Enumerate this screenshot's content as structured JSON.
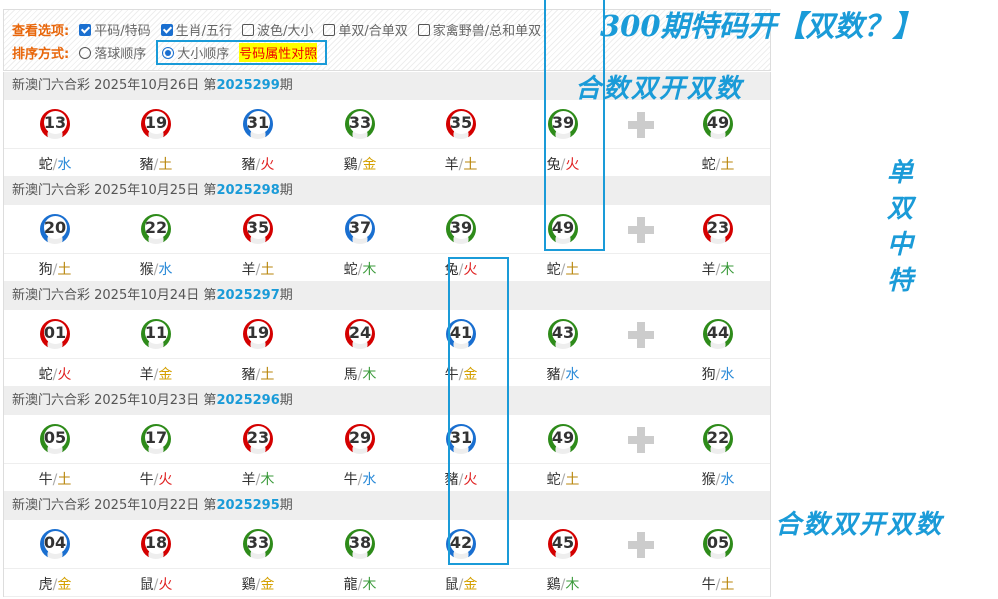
{
  "options": {
    "view_label": "查看选项:",
    "view_items": [
      {
        "label": "平码/特码",
        "checked": true
      },
      {
        "label": "生肖/五行",
        "checked": true
      },
      {
        "label": "波色/大小",
        "checked": false
      },
      {
        "label": "单双/合单双",
        "checked": false
      },
      {
        "label": "家禽野兽/总和单双",
        "checked": false
      }
    ],
    "sort_label": "排序方式:",
    "sort_items": [
      {
        "label": "落球顺序",
        "selected": false
      },
      {
        "label": "大小顺序",
        "selected": true
      }
    ],
    "attr_link": "号码属性对照"
  },
  "ball_colors": {
    "red": "#d40000",
    "blue": "#1a6fd0",
    "green": "#2e8b1a"
  },
  "element_colors": {
    "金": "#d4a000",
    "木": "#3a9a3a",
    "水": "#2a8ad8",
    "火": "#e02020",
    "土": "#b8860b"
  },
  "draws": [
    {
      "title": "新澳门六合彩 2025年10月26日 第",
      "issue": "2025299",
      "suffix": "期",
      "balls": [
        [
          "13",
          "red",
          "蛇",
          "水"
        ],
        [
          "19",
          "red",
          "豬",
          "土"
        ],
        [
          "31",
          "blue",
          "豬",
          "火"
        ],
        [
          "33",
          "green",
          "鷄",
          "金"
        ],
        [
          "35",
          "red",
          "羊",
          "土"
        ],
        [
          "39",
          "green",
          "兔",
          "火"
        ]
      ],
      "special": [
        "49",
        "green",
        "蛇",
        "土"
      ]
    },
    {
      "title": "新澳门六合彩 2025年10月25日 第",
      "issue": "2025298",
      "suffix": "期",
      "balls": [
        [
          "20",
          "blue",
          "狗",
          "土"
        ],
        [
          "22",
          "green",
          "猴",
          "水"
        ],
        [
          "35",
          "red",
          "羊",
          "土"
        ],
        [
          "37",
          "blue",
          "蛇",
          "木"
        ],
        [
          "39",
          "green",
          "兔",
          "火"
        ],
        [
          "49",
          "green",
          "蛇",
          "土"
        ]
      ],
      "special": [
        "23",
        "red",
        "羊",
        "木"
      ]
    },
    {
      "title": "新澳门六合彩 2025年10月24日 第",
      "issue": "2025297",
      "suffix": "期",
      "balls": [
        [
          "01",
          "red",
          "蛇",
          "火"
        ],
        [
          "11",
          "green",
          "羊",
          "金"
        ],
        [
          "19",
          "red",
          "豬",
          "土"
        ],
        [
          "24",
          "red",
          "馬",
          "木"
        ],
        [
          "41",
          "blue",
          "牛",
          "金"
        ],
        [
          "43",
          "green",
          "豬",
          "水"
        ]
      ],
      "special": [
        "44",
        "green",
        "狗",
        "水"
      ]
    },
    {
      "title": "新澳门六合彩 2025年10月23日 第",
      "issue": "2025296",
      "suffix": "期",
      "balls": [
        [
          "05",
          "green",
          "牛",
          "土"
        ],
        [
          "17",
          "green",
          "牛",
          "火"
        ],
        [
          "23",
          "red",
          "羊",
          "木"
        ],
        [
          "29",
          "red",
          "牛",
          "水"
        ],
        [
          "31",
          "blue",
          "豬",
          "火"
        ],
        [
          "49",
          "green",
          "蛇",
          "土"
        ]
      ],
      "special": [
        "22",
        "green",
        "猴",
        "水"
      ]
    },
    {
      "title": "新澳门六合彩 2025年10月22日 第",
      "issue": "2025295",
      "suffix": "期",
      "balls": [
        [
          "04",
          "blue",
          "虎",
          "金"
        ],
        [
          "18",
          "red",
          "鼠",
          "火"
        ],
        [
          "33",
          "green",
          "鷄",
          "金"
        ],
        [
          "38",
          "green",
          "龍",
          "木"
        ],
        [
          "42",
          "blue",
          "鼠",
          "金"
        ],
        [
          "45",
          "red",
          "鷄",
          "木"
        ]
      ],
      "special": [
        "05",
        "green",
        "牛",
        "土"
      ]
    }
  ],
  "overlay": {
    "headline": "300期特码开【双数？】",
    "note1": "合数双开双数",
    "note2": "合数双开双数",
    "vertical": "单双中特"
  }
}
